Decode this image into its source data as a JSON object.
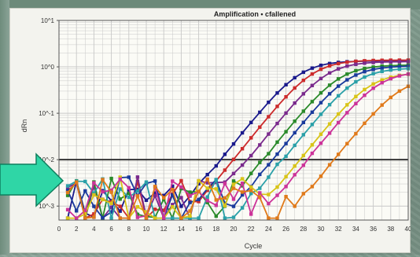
{
  "chart_data": {
    "type": "line",
    "title": "Amplification • cfallened",
    "xlabel": "Cycle",
    "ylabel": "dRn",
    "x_ticks": [
      0,
      2,
      4,
      6,
      8,
      10,
      12,
      14,
      16,
      18,
      20,
      22,
      24,
      26,
      28,
      30,
      32,
      34,
      36,
      38,
      40
    ],
    "y_ticks": [
      {
        "label": "10^1",
        "value": 10
      },
      {
        "label": "10^0",
        "value": 1
      },
      {
        "label": "10^-1",
        "value": 0.1
      },
      {
        "label": "10^-2",
        "value": 0.01
      },
      {
        "label": "10^-3",
        "value": 0.001
      }
    ],
    "xlim": [
      0,
      40
    ],
    "ylim": [
      0.0005,
      10
    ],
    "y_scale": "log",
    "threshold": 0.01,
    "grid": true,
    "series": [
      {
        "color": "#1a1a8c",
        "ct": 21.0,
        "plateau": 1.35
      },
      {
        "color": "#cc2b2b",
        "ct": 22.5,
        "plateau": 1.4
      },
      {
        "color": "#7a2a8c",
        "ct": 24.0,
        "plateau": 1.3
      },
      {
        "color": "#2a8a2a",
        "ct": 25.5,
        "plateau": 1.1
      },
      {
        "color": "#1a3a9c",
        "ct": 26.5,
        "plateau": 1.05
      },
      {
        "color": "#2aa0a8",
        "ct": 27.5,
        "plateau": 0.95
      },
      {
        "color": "#d8c418",
        "ct": 29.0,
        "plateau": 0.75
      },
      {
        "color": "#cc3399",
        "ct": 30.0,
        "plateau": 0.8
      },
      {
        "color": "#e07a1a",
        "ct": 32.5,
        "plateau": 0.6
      }
    ],
    "annotation": "arrow pointing at baseline noise region"
  },
  "colors": {
    "arrow": "#2fd6a6",
    "arrow_edge": "#0f7f5e",
    "threshold_line": "#333333",
    "grid": "#c8c8c8"
  }
}
